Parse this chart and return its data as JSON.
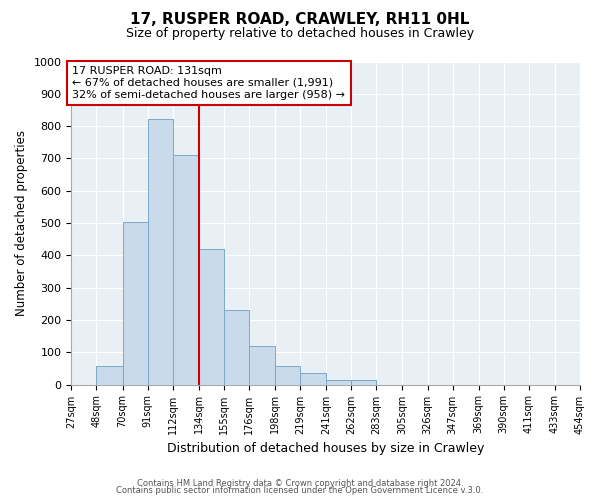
{
  "title": "17, RUSPER ROAD, CRAWLEY, RH11 0HL",
  "subtitle": "Size of property relative to detached houses in Crawley",
  "xlabel": "Distribution of detached houses by size in Crawley",
  "ylabel": "Number of detached properties",
  "bin_edges": [
    27,
    48,
    70,
    91,
    112,
    134,
    155,
    176,
    198,
    219,
    241,
    262,
    283,
    305,
    326,
    347,
    369,
    390,
    411,
    433,
    454
  ],
  "bin_labels": [
    "27sqm",
    "48sqm",
    "70sqm",
    "91sqm",
    "112sqm",
    "134sqm",
    "155sqm",
    "176sqm",
    "198sqm",
    "219sqm",
    "241sqm",
    "262sqm",
    "283sqm",
    "305sqm",
    "326sqm",
    "347sqm",
    "369sqm",
    "390sqm",
    "411sqm",
    "433sqm",
    "454sqm"
  ],
  "counts": [
    0,
    57,
    503,
    822,
    712,
    420,
    232,
    118,
    57,
    35,
    13,
    13,
    0,
    0,
    0,
    0,
    0,
    0,
    0,
    0
  ],
  "bar_color": "#c9daea",
  "bar_edge_color": "#7aaac8",
  "vline_x": 134,
  "vline_color": "#cc0000",
  "annotation_title": "17 RUSPER ROAD: 131sqm",
  "annotation_line1": "← 67% of detached houses are smaller (1,991)",
  "annotation_line2": "32% of semi-detached houses are larger (958) →",
  "annotation_box_edgecolor": "#cc0000",
  "footer1": "Contains HM Land Registry data © Crown copyright and database right 2024.",
  "footer2": "Contains public sector information licensed under the Open Government Licence v.3.0.",
  "ylim": [
    0,
    1000
  ],
  "fig_background": "#ffffff",
  "plot_background": "#e8eff5"
}
